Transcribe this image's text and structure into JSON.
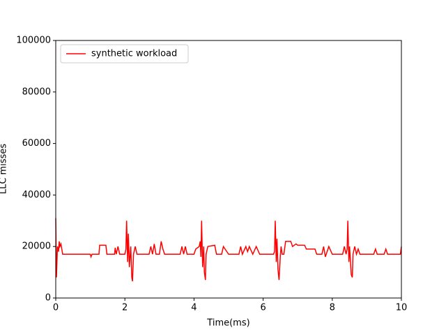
{
  "chart_data": {
    "type": "line",
    "xlabel": "Time(ms)",
    "ylabel": "LLC misses",
    "xlim": [
      0,
      10
    ],
    "xticks": [
      0,
      2,
      4,
      6,
      8,
      10
    ],
    "ylim": [
      0,
      100000
    ],
    "yticks": [
      0,
      20000,
      40000,
      60000,
      80000,
      100000
    ],
    "legend": "upper left",
    "series": [
      {
        "name": "synthetic workload",
        "color": "#ff0000",
        "x": [
          0,
          0.02,
          0.05,
          0.08,
          0.1,
          0.12,
          0.15,
          0.2,
          1.0,
          1.02,
          1.05,
          1.25,
          1.27,
          1.45,
          1.48,
          1.7,
          1.72,
          1.75,
          1.8,
          1.85,
          2.0,
          2.03,
          2.05,
          2.08,
          2.1,
          2.13,
          2.17,
          2.2,
          2.22,
          2.25,
          2.3,
          2.35,
          2.7,
          2.75,
          2.8,
          2.85,
          2.9,
          3.0,
          3.05,
          3.1,
          3.15,
          3.6,
          3.65,
          3.7,
          3.75,
          3.8,
          3.85,
          4.0,
          4.05,
          4.15,
          4.18,
          4.2,
          4.22,
          4.25,
          4.28,
          4.3,
          4.33,
          4.35,
          4.4,
          4.6,
          4.65,
          4.8,
          4.85,
          5.0,
          5.05,
          5.3,
          5.35,
          5.4,
          5.5,
          5.55,
          5.6,
          5.7,
          5.8,
          5.9,
          6.0,
          6.3,
          6.33,
          6.35,
          6.38,
          6.4,
          6.43,
          6.46,
          6.5,
          6.52,
          6.55,
          6.6,
          6.65,
          6.8,
          6.85,
          6.95,
          7.0,
          7.2,
          7.25,
          7.5,
          7.55,
          7.7,
          7.75,
          7.8,
          7.9,
          8.0,
          8.3,
          8.35,
          8.4,
          8.43,
          8.45,
          8.48,
          8.5,
          8.55,
          8.58,
          8.6,
          8.65,
          8.7,
          8.75,
          8.8,
          8.85,
          9.2,
          9.25,
          9.3,
          9.5,
          9.55,
          9.6,
          9.97,
          10.0
        ],
        "values": [
          31000,
          8000,
          20000,
          18000,
          22000,
          20000,
          21000,
          17000,
          17000,
          16000,
          17000,
          17000,
          20500,
          20500,
          17000,
          17000,
          19500,
          17000,
          20000,
          17000,
          17000,
          19000,
          30000,
          14000,
          25000,
          12000,
          20000,
          8000,
          6500,
          17000,
          20000,
          17000,
          17000,
          20000,
          17000,
          21000,
          17000,
          17000,
          22000,
          19000,
          17000,
          17000,
          20000,
          17000,
          20000,
          17000,
          17000,
          17000,
          19000,
          20000,
          22000,
          16000,
          30000,
          12000,
          20000,
          10000,
          7000,
          17000,
          20000,
          20500,
          17000,
          17000,
          20000,
          17000,
          17000,
          17000,
          20000,
          17000,
          20000,
          18000,
          20000,
          17000,
          20000,
          17000,
          17000,
          17000,
          18000,
          30000,
          14000,
          23000,
          11000,
          7000,
          17000,
          20000,
          17000,
          17000,
          22000,
          22000,
          20000,
          21000,
          20500,
          20500,
          19000,
          19000,
          17000,
          17000,
          20000,
          16000,
          20000,
          17000,
          17000,
          20000,
          17000,
          19000,
          30000,
          14000,
          20000,
          9000,
          8000,
          17000,
          20000,
          17000,
          19000,
          17000,
          17000,
          17000,
          19000,
          17000,
          17000,
          19000,
          17000,
          17000,
          20000
        ]
      }
    ]
  }
}
